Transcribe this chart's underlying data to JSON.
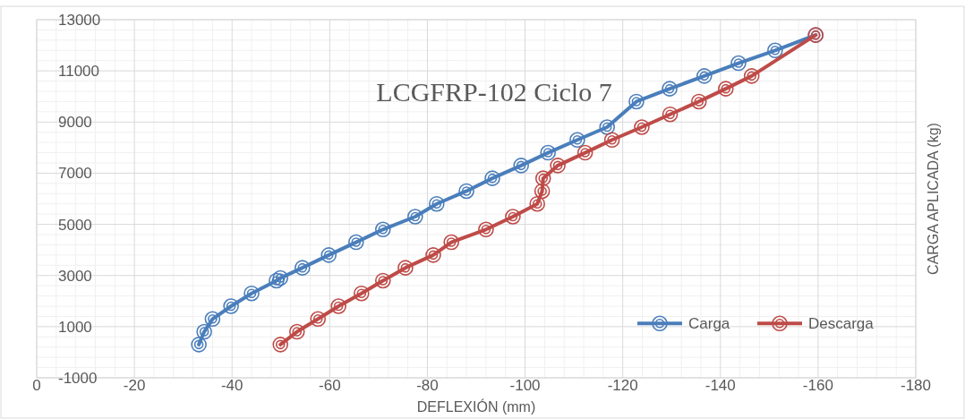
{
  "chart_data": {
    "type": "line",
    "title": "LCGFRP-102  Ciclo 7",
    "xlabel": "DEFLEXIÓN (mm)",
    "ylabel": "CARGA APLICADA (kg)",
    "xlim": [
      0,
      -180
    ],
    "xticks": [
      0,
      -20,
      -40,
      -60,
      -80,
      -100,
      -120,
      -140,
      -160,
      -180
    ],
    "ylim": [
      -1000,
      13000
    ],
    "yticks": [
      -1000,
      1000,
      3000,
      5000,
      7000,
      9000,
      11000,
      13000
    ],
    "grid": true,
    "legend": "bottom right",
    "marker": "circle",
    "line_style": "solid",
    "series": [
      {
        "name": "Carga",
        "color": "#4a7ebb",
        "x": [
          -33.2,
          -34.3,
          -36,
          -39.8,
          -44,
          -49.1,
          -49.9,
          -54.4,
          -59.8,
          -65.4,
          -70.9,
          -77.5,
          -81.9,
          -88,
          -93.3,
          -99.2,
          -104.7,
          -110.7,
          -116.8,
          -122.8,
          -129.6,
          -136.7,
          -143.7,
          -151.2,
          -159.5
        ],
        "values": [
          300,
          800,
          1300,
          1800,
          2300,
          2800,
          2900,
          3300,
          3800,
          4300,
          4800,
          5300,
          5800,
          6300,
          6800,
          7300,
          7800,
          8300,
          8800,
          9800,
          10300,
          10800,
          11300,
          11800,
          12400
        ]
      },
      {
        "name": "Descarga",
        "color": "#be4b48",
        "x": [
          -49.9,
          -53.3,
          -57.6,
          -61.8,
          -66.5,
          -70.9,
          -75.5,
          -81.2,
          -84.9,
          -92,
          -97.5,
          -102.5,
          -103.5,
          -103.7,
          -106.7,
          -112.3,
          -117.8,
          -123.9,
          -129.7,
          -135.6,
          -141.1,
          -146.4,
          -159.5
        ],
        "values": [
          300,
          800,
          1300,
          1800,
          2300,
          2800,
          3300,
          3800,
          4300,
          4800,
          5300,
          5800,
          6300,
          6800,
          7300,
          7800,
          8300,
          8800,
          9300,
          9800,
          10300,
          10800,
          12400
        ]
      }
    ]
  }
}
